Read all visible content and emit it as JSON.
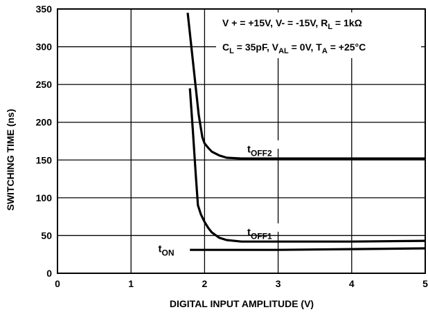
{
  "chart_data": {
    "type": "line",
    "xlabel": "DIGITAL INPUT AMPLITUDE (V)",
    "ylabel": "SWITCHING TIME (ns)",
    "xlim": [
      0,
      5
    ],
    "ylim": [
      0,
      350
    ],
    "x_ticks": [
      "0",
      "1",
      "2",
      "3",
      "4",
      "5"
    ],
    "y_ticks": [
      "0",
      "50",
      "100",
      "150",
      "200",
      "250",
      "300",
      "350"
    ],
    "grid": true,
    "conditions": {
      "line1": {
        "a": "V + = +15V, V- = -15V, R",
        "a_sub": "L",
        "b": " = 1kΩ"
      },
      "line2": {
        "a": "C",
        "a_sub": "L",
        "b": " = 35pF, V",
        "b_sub": "AL",
        "c": " = 0V, T",
        "c_sub": "A",
        "d": " = +25°C"
      }
    },
    "series": [
      {
        "name": "tOFF2",
        "label_main": "t",
        "label_sub": "OFF2",
        "x": [
          1.77,
          1.82,
          1.87,
          1.92,
          1.97,
          2.0,
          2.05,
          2.1,
          2.2,
          2.3,
          2.5,
          3.0,
          4.0,
          5.0
        ],
        "y": [
          345,
          300,
          255,
          210,
          180,
          172,
          166,
          161,
          156,
          153,
          152,
          152,
          152,
          152
        ]
      },
      {
        "name": "tOFF1",
        "label_main": "t",
        "label_sub": "OFF1",
        "x": [
          1.8,
          1.84,
          1.88,
          1.91,
          1.95,
          2.0,
          2.05,
          2.1,
          2.2,
          2.3,
          2.5,
          3.0,
          4.0,
          5.0
        ],
        "y": [
          245,
          190,
          130,
          90,
          78,
          68,
          60,
          54,
          47,
          44,
          42,
          42,
          42,
          43
        ]
      },
      {
        "name": "tON",
        "label_main": "t",
        "label_sub": "ON",
        "x": [
          1.8,
          2.5,
          3.0,
          4.0,
          5.0
        ],
        "y": [
          31,
          31,
          31,
          32,
          33
        ]
      }
    ]
  }
}
